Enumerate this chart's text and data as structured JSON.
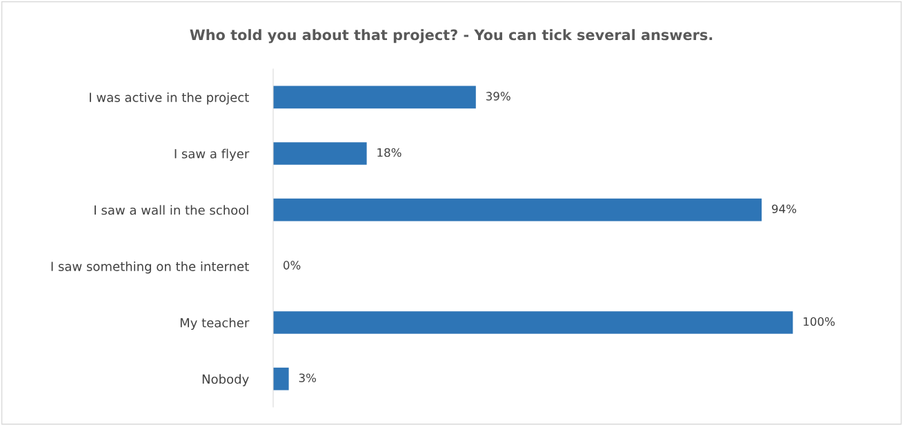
{
  "chart_data": {
    "type": "bar",
    "orientation": "horizontal",
    "title": "Who told you about that project? - You can tick several answers.",
    "categories": [
      "I was active in the project",
      "I saw a flyer",
      "I saw a wall in the school",
      "I saw something on the internet",
      "My teacher",
      "Nobody"
    ],
    "values": [
      39,
      18,
      94,
      0,
      100,
      3
    ],
    "value_labels": [
      "39%",
      "18%",
      "94%",
      "0%",
      "100%",
      "3%"
    ],
    "color": "#2e75b6",
    "tick_labels": "y",
    "grid": false,
    "legend": false
  }
}
